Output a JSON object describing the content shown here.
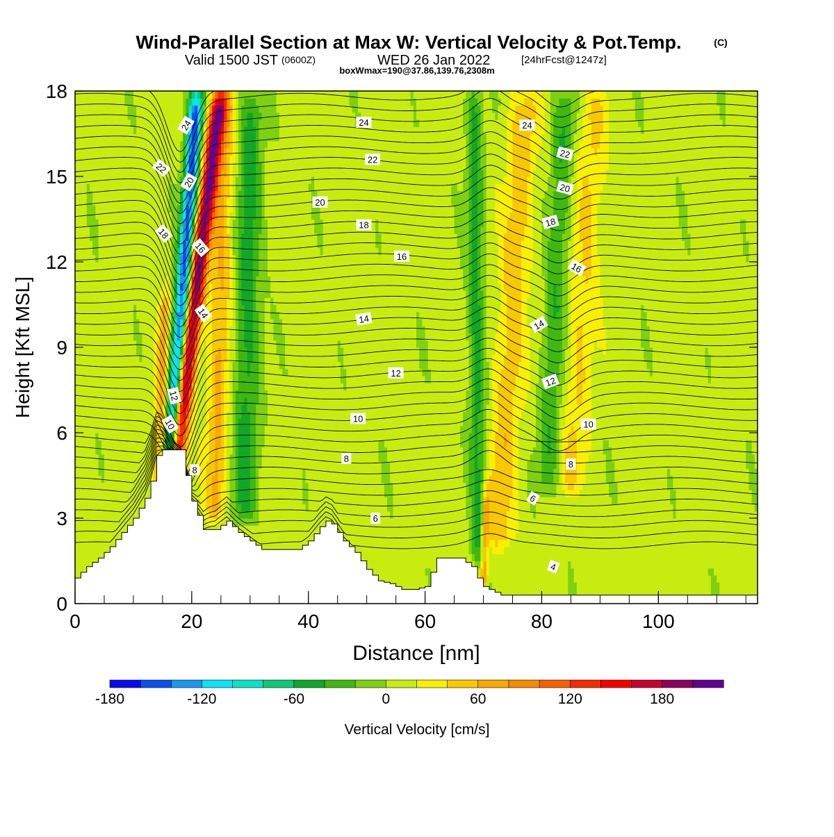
{
  "title": {
    "main": "Wind-Parallel Section at Max W: Vertical Velocity & Pot.Temp.",
    "copyright": "(C)",
    "valid_prefix": "Valid 1500 JST",
    "valid_zone": "(0600Z)",
    "valid_date": "WED 26 Jan 2022",
    "valid_fcst": "[24hrFcst@1247z]",
    "box": "boxWmax=190@37.86,139.76,2308m"
  },
  "chart_data": {
    "type": "heatmap",
    "xlabel": "Distance [nm]",
    "ylabel": "Height [Kft MSL]",
    "xlim": [
      0,
      117
    ],
    "ylim": [
      0,
      18
    ],
    "xticks": [
      0,
      20,
      40,
      60,
      80,
      100
    ],
    "yticks": [
      0,
      3,
      6,
      9,
      12,
      15,
      18
    ],
    "colorbar": {
      "label": "Vertical Velocity [cm/s]",
      "range": [
        -180,
        220
      ],
      "step": 20,
      "tick_values": [
        -180,
        -120,
        -60,
        0,
        60,
        120,
        180
      ],
      "tick_labels": [
        "-180",
        "-120",
        "-60",
        "0",
        "60",
        "120",
        "180"
      ],
      "colors": [
        "#0a0af0",
        "#0a50f0",
        "#1a98f0",
        "#10e0f8",
        "#10e0c8",
        "#10c878",
        "#10a828",
        "#40b810",
        "#7ed010",
        "#c8ec10",
        "#f8f000",
        "#f8c800",
        "#f8a800",
        "#f88a00",
        "#f86000",
        "#f82a00",
        "#f80000",
        "#c80030",
        "#8c0060",
        "#640090"
      ]
    },
    "terrain": {
      "x": [
        0,
        1,
        2,
        4,
        6,
        8,
        10,
        12,
        13,
        14,
        15,
        16,
        17,
        18,
        19,
        20,
        21,
        22,
        24,
        26,
        28,
        30,
        32,
        34,
        36,
        38,
        40,
        42,
        43,
        44,
        45,
        46,
        48,
        50,
        52,
        54,
        56,
        58,
        60,
        62,
        64,
        66,
        68,
        69,
        70,
        71,
        72,
        73,
        74,
        76,
        80,
        90,
        100,
        110,
        117
      ],
      "y": [
        0.9,
        1.1,
        1.3,
        1.6,
        2.0,
        2.5,
        3.0,
        3.7,
        4.3,
        5.2,
        5.4,
        5.4,
        5.4,
        5.4,
        4.5,
        3.6,
        3.1,
        2.6,
        2.6,
        2.9,
        2.5,
        2.2,
        1.9,
        1.9,
        1.9,
        1.9,
        2.2,
        2.7,
        2.9,
        2.8,
        2.5,
        2.2,
        1.8,
        1.2,
        0.8,
        0.7,
        0.5,
        0.5,
        0.6,
        1.6,
        1.6,
        1.6,
        1.3,
        0.9,
        0.6,
        0.5,
        0.4,
        0.3,
        0.3,
        0.3,
        0.3,
        0.3,
        0.3,
        0.3,
        0.3
      ]
    },
    "w_features": [
      {
        "x0": 17.0,
        "slope": 0.58,
        "width": 1.4,
        "amp": 190,
        "z0": 4.5,
        "z1": 18,
        "note": "main updraft"
      },
      {
        "x0": 16.2,
        "slope": 0.35,
        "width": 1.3,
        "amp": -160,
        "z0": 4.5,
        "z1": 18,
        "note": "main downdraft"
      },
      {
        "x0": 14.2,
        "slope": 0.18,
        "width": 1.0,
        "amp": 60,
        "z0": 4.0,
        "z1": 11,
        "note": "lower updraft"
      },
      {
        "x0": 24.0,
        "slope": 0.12,
        "width": 1.8,
        "amp": 55,
        "z0": 3.0,
        "z1": 18,
        "note": "secondary updraft"
      },
      {
        "x0": 29.0,
        "slope": 0.08,
        "width": 2.2,
        "amp": -55,
        "z0": 3.0,
        "z1": 18,
        "note": "secondary downdraft"
      },
      {
        "x0": 69.2,
        "slope": -0.05,
        "width": 1.4,
        "amp": -55,
        "z0": 1.5,
        "z1": 18,
        "note": "downdraft near 70nm"
      },
      {
        "x0": 70.0,
        "slope": 0.15,
        "width": 0.6,
        "amp": 75,
        "z0": 0.5,
        "z1": 4.0,
        "note": "low-level updraft"
      },
      {
        "x0": 72.5,
        "slope": 0.3,
        "width": 2.5,
        "amp": 45,
        "z0": 2.0,
        "z1": 18,
        "note": "upper updraft"
      },
      {
        "x0": 81.0,
        "slope": 0.22,
        "width": 2.0,
        "amp": -45,
        "z0": 4.0,
        "z1": 18,
        "note": "downdraft near 84nm"
      },
      {
        "x0": 85.0,
        "slope": 0.3,
        "width": 2.5,
        "amp": 35,
        "z0": 4.0,
        "z1": 18,
        "note": "updraft near 90nm"
      }
    ],
    "theta_levels": [
      4,
      6,
      8,
      10,
      12,
      14,
      16,
      18,
      20,
      22,
      24
    ],
    "theta_labels": [
      {
        "text": "24",
        "x": 19.0,
        "y": 16.8,
        "angle": -60
      },
      {
        "text": "22",
        "x": 14.8,
        "y": 15.3,
        "angle": 40
      },
      {
        "text": "20",
        "x": 19.5,
        "y": 14.8,
        "angle": -60
      },
      {
        "text": "18",
        "x": 15.2,
        "y": 13.0,
        "angle": 50
      },
      {
        "text": "16",
        "x": 21.5,
        "y": 12.5,
        "angle": 50
      },
      {
        "text": "14",
        "x": 22.0,
        "y": 10.2,
        "angle": 55
      },
      {
        "text": "12",
        "x": 17.0,
        "y": 7.3,
        "angle": 75
      },
      {
        "text": "10",
        "x": 16.3,
        "y": 6.3,
        "angle": 60
      },
      {
        "text": "8",
        "x": 20.5,
        "y": 4.7,
        "angle": 0
      },
      {
        "text": "24",
        "x": 49.5,
        "y": 16.9,
        "angle": 0
      },
      {
        "text": "22",
        "x": 51.0,
        "y": 15.6,
        "angle": 0
      },
      {
        "text": "20",
        "x": 42.0,
        "y": 14.1,
        "angle": 0
      },
      {
        "text": "18",
        "x": 49.5,
        "y": 13.3,
        "angle": 0
      },
      {
        "text": "16",
        "x": 56.0,
        "y": 12.2,
        "angle": 0
      },
      {
        "text": "14",
        "x": 49.5,
        "y": 10.0,
        "angle": -10
      },
      {
        "text": "12",
        "x": 55.0,
        "y": 8.1,
        "angle": 0
      },
      {
        "text": "10",
        "x": 48.5,
        "y": 6.5,
        "angle": 0
      },
      {
        "text": "8",
        "x": 46.5,
        "y": 5.1,
        "angle": 0
      },
      {
        "text": "6",
        "x": 51.5,
        "y": 3.0,
        "angle": 0
      },
      {
        "text": "24",
        "x": 77.5,
        "y": 16.8,
        "angle": 0
      },
      {
        "text": "22",
        "x": 84.0,
        "y": 15.8,
        "angle": 15
      },
      {
        "text": "20",
        "x": 84.0,
        "y": 14.6,
        "angle": 15
      },
      {
        "text": "18",
        "x": 81.5,
        "y": 13.4,
        "angle": -15
      },
      {
        "text": "16",
        "x": 86.0,
        "y": 11.8,
        "angle": 30
      },
      {
        "text": "14",
        "x": 79.5,
        "y": 9.8,
        "angle": -30
      },
      {
        "text": "12",
        "x": 81.5,
        "y": 7.8,
        "angle": -20
      },
      {
        "text": "10",
        "x": 88.0,
        "y": 6.3,
        "angle": 0
      },
      {
        "text": "8",
        "x": 85.0,
        "y": 4.9,
        "angle": 0
      },
      {
        "text": "6",
        "x": 78.5,
        "y": 3.7,
        "angle": 30
      },
      {
        "text": "4",
        "x": 82.0,
        "y": 1.3,
        "angle": 20
      }
    ]
  }
}
